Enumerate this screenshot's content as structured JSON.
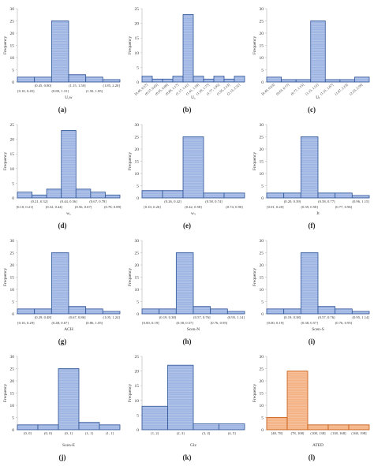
{
  "colors": {
    "blue_fill": "#9db4e3",
    "blue_stroke": "#2f5597",
    "orange_fill": "#f4b183",
    "orange_stroke": "#c55a11",
    "axis": "#bfbfbf",
    "text": "#333333"
  },
  "chart_data": [
    {
      "type": "bar",
      "letter": "(a)",
      "xlabel": "Uₐw",
      "ylabel": "Frequency",
      "ylim": [
        0,
        30
      ],
      "yticks": [
        0,
        5,
        10,
        15,
        20,
        25,
        30
      ],
      "categories": [
        "[0.10, 0.45]",
        "(0.45, 0.80]",
        "(0.80, 1.15]",
        "(1.15, 1.50]",
        "(1.50, 1.85]",
        "(1.85, 2.20]"
      ],
      "values": [
        2,
        2,
        25,
        3,
        2,
        1
      ],
      "label_rows": [
        1,
        0,
        1,
        0,
        1,
        0
      ],
      "label_angle": 0
    },
    {
      "type": "bar",
      "letter": "(b)",
      "xlabel": "U꜀",
      "ylabel": "Frequency",
      "ylim": [
        0,
        25
      ],
      "yticks": [
        0,
        5,
        10,
        15,
        20,
        25
      ],
      "categories": [
        "[0.49, 0.57]",
        "(0.57, 0.65]",
        "(0.65, 0.89]",
        "(0.89, 1.17]",
        "(1.17, 1.41]",
        "(1.41, 1.59]",
        "(1.59, 1.77]",
        "(1.77, 1.95]",
        "(1.95, 2.13]",
        "(2.13, 2.31]"
      ],
      "values": [
        2,
        1,
        1,
        2,
        23,
        2,
        1,
        2,
        1,
        2
      ],
      "label_rows": [
        0,
        0,
        0,
        0,
        0,
        0,
        0,
        0,
        0,
        0
      ],
      "label_angle": -40
    },
    {
      "type": "bar",
      "letter": "(c)",
      "xlabel": "Uₜ",
      "ylabel": "Frequency",
      "ylim": [
        0,
        30
      ],
      "yticks": [
        0,
        5,
        10,
        15,
        20,
        25,
        30
      ],
      "categories": [
        "[0.49, 0.63]",
        "(0.63, 0.77]",
        "(0.77, 1.15]",
        "(1.15, 1.51]",
        "(1.51, 1.87]",
        "(1.87, 2.23]",
        "(2.23, 2.59]"
      ],
      "values": [
        2,
        1,
        1,
        25,
        1,
        1,
        2
      ],
      "label_rows": [
        0,
        0,
        0,
        0,
        0,
        0,
        0
      ],
      "label_angle": -40
    },
    {
      "type": "bar",
      "letter": "(d)",
      "xlabel": "w꜀",
      "ylabel": "Frequency",
      "ylim": [
        0,
        25
      ],
      "yticks": [
        0,
        5,
        10,
        15,
        20,
        25
      ],
      "categories": [
        "[0.10, 0.21]",
        "(0.21, 0.32]",
        "(0.32, 0.44]",
        "(0.44, 0.56]",
        "(0.56, 0.67]",
        "(0.67, 0.78]",
        "(0.78, 0.89]"
      ],
      "values": [
        2,
        1,
        3,
        23,
        3,
        2,
        1
      ],
      "label_rows": [
        1,
        0,
        1,
        0,
        1,
        0,
        1
      ],
      "label_angle": 0
    },
    {
      "type": "bar",
      "letter": "(e)",
      "xlabel": "wₛ",
      "ylabel": "Frequency",
      "ylim": [
        0,
        30
      ],
      "yticks": [
        0,
        5,
        10,
        15,
        20,
        25,
        30
      ],
      "categories": [
        "[0.10, 0.26]",
        "(0.26, 0.42]",
        "(0.42, 0.58]",
        "(0.58, 0.74]",
        "(0.74, 0.90]"
      ],
      "values": [
        3,
        3,
        25,
        2,
        2
      ],
      "label_rows": [
        1,
        0,
        1,
        0,
        1
      ],
      "label_angle": 0
    },
    {
      "type": "bar",
      "letter": "(f)",
      "xlabel": "Jt",
      "ylabel": "Frequency",
      "ylim": [
        0,
        30
      ],
      "yticks": [
        0,
        5,
        10,
        15,
        20,
        25,
        30
      ],
      "categories": [
        "[0.01, 0.20]",
        "(0.20, 0.39]",
        "(0.39, 0.58]",
        "(0.58, 0.77]",
        "(0.77, 0.96]",
        "(0.96, 1.15]"
      ],
      "values": [
        2,
        2,
        25,
        2,
        2,
        1
      ],
      "label_rows": [
        1,
        0,
        1,
        0,
        1,
        0
      ],
      "label_angle": 0
    },
    {
      "type": "bar",
      "letter": "(g)",
      "xlabel": "ACH",
      "ylabel": "Frequency",
      "ylim": [
        0,
        30
      ],
      "yticks": [
        0,
        5,
        10,
        15,
        20,
        25,
        30
      ],
      "categories": [
        "[0.10, 0.29]",
        "(0.29, 0.48]",
        "(0.48, 0.67]",
        "(0.67, 0.86]",
        "(0.86, 1.05]",
        "(1.05, 1.24]"
      ],
      "values": [
        2,
        2,
        25,
        3,
        2,
        1
      ],
      "label_rows": [
        1,
        0,
        1,
        0,
        1,
        0
      ],
      "label_angle": 0
    },
    {
      "type": "bar",
      "letter": "(h)",
      "xlabel": "Scen-N",
      "ylabel": "Frequency",
      "ylim": [
        0,
        30
      ],
      "yticks": [
        0,
        5,
        10,
        15,
        20,
        25,
        30
      ],
      "categories": [
        "[0.00, 0.19]",
        "(0.19, 0.38]",
        "(0.38, 0.57]",
        "(0.57, 0.76]",
        "(0.76, 0.95]",
        "(0.95, 1.14]"
      ],
      "values": [
        2,
        2,
        25,
        3,
        2,
        1
      ],
      "label_rows": [
        1,
        0,
        1,
        0,
        1,
        0
      ],
      "label_angle": 0
    },
    {
      "type": "bar",
      "letter": "(i)",
      "xlabel": "Scen-S",
      "ylabel": "Frequency",
      "ylim": [
        0,
        30
      ],
      "yticks": [
        0,
        5,
        10,
        15,
        20,
        25,
        30
      ],
      "categories": [
        "[0.00, 0.19]",
        "(0.19, 0.38]",
        "(0.38, 0.57]",
        "(0.57, 0.76]",
        "(0.76, 0.95]",
        "(0.95, 1.14]"
      ],
      "values": [
        2,
        2,
        25,
        3,
        2,
        1
      ],
      "label_rows": [
        1,
        0,
        1,
        0,
        1,
        0
      ],
      "label_angle": 0
    },
    {
      "type": "bar",
      "letter": "(j)",
      "xlabel": "Scen-E",
      "ylabel": "Frequency",
      "ylim": [
        0,
        30
      ],
      "yticks": [
        0,
        5,
        10,
        15,
        20,
        25,
        30
      ],
      "categories": [
        "[0, 0]",
        "(0, 0]",
        "(0, 1]",
        "(1, 1]",
        "(1, 1]"
      ],
      "values": [
        2,
        2,
        25,
        3,
        2
      ],
      "label_rows": [
        0,
        0,
        0,
        0,
        0
      ],
      "label_angle": 0
    },
    {
      "type": "bar",
      "letter": "(k)",
      "xlabel": "Glz",
      "ylabel": "Frequency",
      "ylim": [
        0,
        25
      ],
      "yticks": [
        0,
        5,
        10,
        15,
        20,
        25
      ],
      "categories": [
        "[1, 2]",
        "(2, 3]",
        "(3, 4]",
        "(4, 5]"
      ],
      "values": [
        8,
        22,
        2,
        2
      ],
      "label_rows": [
        0,
        0,
        0,
        0
      ],
      "label_angle": 0
    },
    {
      "type": "bar",
      "letter": "(l)",
      "xlabel": "ATED",
      "ylabel": "Frequency",
      "ylim": [
        0,
        30
      ],
      "yticks": [
        0,
        5,
        10,
        15,
        20,
        25,
        30
      ],
      "categories": [
        "[48, 78]",
        "(78, 108]",
        "(108, 138]",
        "(138, 168]",
        "(168, 198]"
      ],
      "values": [
        5,
        24,
        2,
        2,
        2
      ],
      "label_rows": [
        0,
        0,
        0,
        0,
        0
      ],
      "label_angle": 0,
      "accent": "orange"
    }
  ]
}
